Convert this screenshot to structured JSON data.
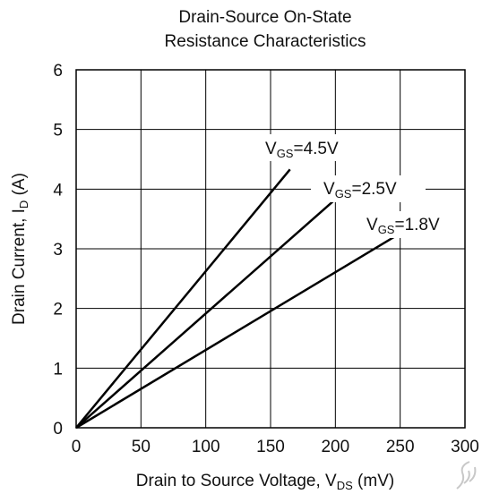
{
  "chart_data": {
    "type": "line",
    "title_line1": "Drain-Source On-State",
    "title_line2": "Resistance Characteristics",
    "xlabel_main": "Drain to Source Voltage, V",
    "xlabel_sub": "DS",
    "xlabel_tail": " (mV)",
    "ylabel_main": "Drain Current, I",
    "ylabel_sub": "D",
    "ylabel_tail": " (A)",
    "xlim": [
      0,
      300
    ],
    "ylim": [
      0,
      6
    ],
    "x_ticks": [
      0,
      50,
      100,
      150,
      200,
      250,
      300
    ],
    "y_ticks": [
      0,
      1,
      2,
      3,
      4,
      5,
      6
    ],
    "grid": true,
    "series": [
      {
        "name": "VGS=4.5V",
        "label_main": "V",
        "label_sub": "GS",
        "label_tail": "=4.5V",
        "x": [
          0,
          165
        ],
        "y": [
          0,
          4.33
        ]
      },
      {
        "name": "VGS=2.5V",
        "label_main": "V",
        "label_sub": "GS",
        "label_tail": "=2.5V",
        "x": [
          0,
          200
        ],
        "y": [
          0,
          3.83
        ]
      },
      {
        "name": "VGS=1.8V",
        "label_main": "V",
        "label_sub": "GS",
        "label_tail": "=1.8V",
        "x": [
          0,
          247
        ],
        "y": [
          0,
          3.22
        ]
      }
    ],
    "line_color": "#000000"
  }
}
